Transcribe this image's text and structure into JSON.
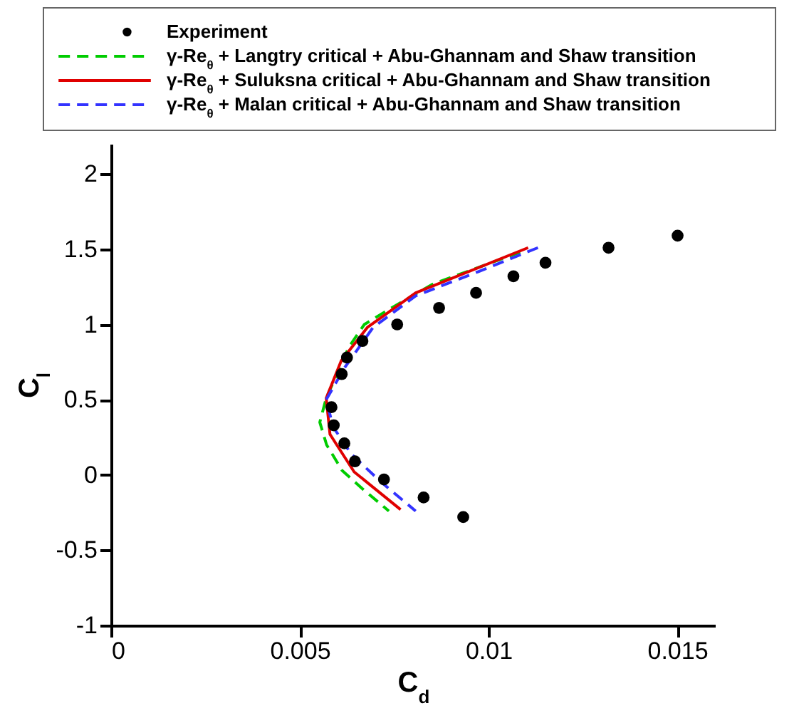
{
  "chart_data": {
    "type": "line",
    "xlabel": "C$_{d}$",
    "ylabel": "C$_{l}$",
    "xlim": [
      0,
      0.016
    ],
    "ylim": [
      -1,
      2.2
    ],
    "xticks": [
      0,
      0.005,
      0.01,
      0.015
    ],
    "yticks": [
      -1,
      -0.5,
      0,
      0.5,
      1,
      1.5,
      2
    ],
    "grid": false,
    "legend": "top",
    "series": [
      {
        "name": "Experiment",
        "type": "scatter",
        "marker": "circle",
        "color": "#000000",
        "x": [
          0.01501,
          0.01318,
          0.01151,
          0.01066,
          0.00967,
          0.00869,
          0.00758,
          0.00666,
          0.00625,
          0.00611,
          0.00584,
          0.0059,
          0.00618,
          0.00646,
          0.00723,
          0.00828,
          0.00933
        ],
        "values": [
          1.59,
          1.51,
          1.41,
          1.32,
          1.21,
          1.11,
          1.0,
          0.89,
          0.78,
          0.67,
          0.45,
          0.33,
          0.21,
          0.09,
          -0.03,
          -0.15,
          -0.28
        ]
      },
      {
        "name": "γ-Re$_{θ}$ + Langtry critical + Abu-Ghannam and Shaw transition",
        "line_style": "dashed",
        "color": "#00cc00",
        "x": [
          0.01084,
          0.00854,
          0.00736,
          0.00671,
          0.0063,
          0.0057,
          0.00553,
          0.00571,
          0.00612,
          0.00665,
          0.00736
        ],
        "values": [
          1.48,
          1.27,
          1.1,
          1.0,
          0.85,
          0.51,
          0.35,
          0.2,
          0.03,
          -0.09,
          -0.24
        ]
      },
      {
        "name": "γ-Re$_{θ}$ + Suluksna critical + Abu-Ghannam and Shaw transition",
        "line_style": "solid",
        "color": "#e00000",
        "x": [
          0.01105,
          0.00807,
          0.00679,
          0.0061,
          0.0057,
          0.0058,
          0.00644,
          0.00767
        ],
        "values": [
          1.51,
          1.21,
          0.98,
          0.76,
          0.51,
          0.27,
          0.02,
          -0.23
        ]
      },
      {
        "name": "γ-Re$_{θ}$ + Malan critical + Abu-Ghannam and Shaw transition",
        "line_style": "dashed",
        "color": "#3333ff",
        "x": [
          0.01131,
          0.00972,
          0.00807,
          0.00694,
          0.00618,
          0.0057,
          0.00588,
          0.00636,
          0.00712,
          0.00807
        ],
        "values": [
          1.51,
          1.35,
          1.19,
          0.98,
          0.71,
          0.5,
          0.32,
          0.14,
          -0.04,
          -0.24
        ]
      }
    ]
  }
}
